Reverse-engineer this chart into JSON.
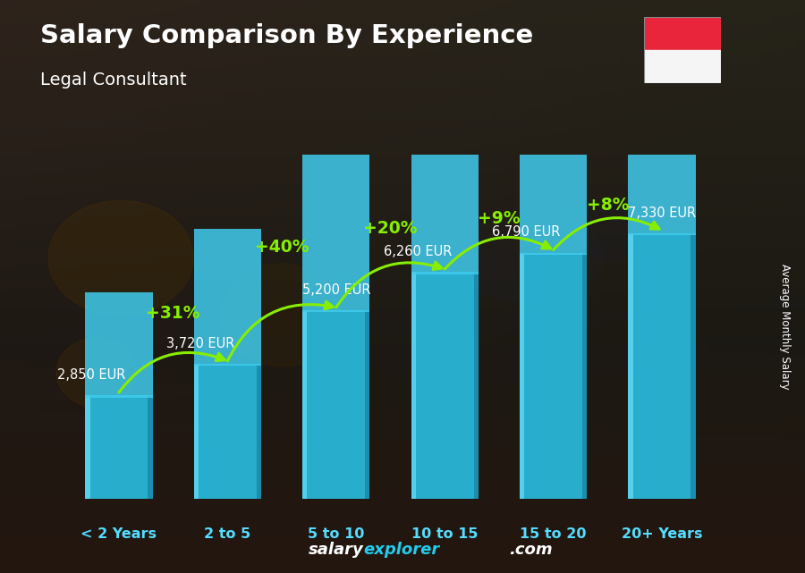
{
  "title": "Salary Comparison By Experience",
  "subtitle": "Legal Consultant",
  "ylabel": "Average Monthly Salary",
  "categories": [
    "< 2 Years",
    "2 to 5",
    "5 to 10",
    "10 to 15",
    "15 to 20",
    "20+ Years"
  ],
  "values": [
    2850,
    3720,
    5200,
    6260,
    6790,
    7330
  ],
  "value_labels": [
    "2,850 EUR",
    "3,720 EUR",
    "5,200 EUR",
    "6,260 EUR",
    "6,790 EUR",
    "7,330 EUR"
  ],
  "pct_labels": [
    "+31%",
    "+40%",
    "+20%",
    "+9%",
    "+8%"
  ],
  "bar_color_main": "#29b6d8",
  "bar_color_light": "#5ad4f0",
  "bar_color_dark": "#1a8aaa",
  "bar_color_top": "#40ccee",
  "bg_color_top": "#1a1a2e",
  "bg_color_bottom": "#2d1f0e",
  "pct_color": "#88ee00",
  "value_label_color": "#ffffff",
  "cat_label_color": "#55ddff",
  "watermark_color1": "#ffffff",
  "watermark_color2": "#22ccee",
  "flag_red": "#e8253a",
  "flag_white": "#f5f5f5",
  "ylim_max": 9500,
  "bar_width": 0.62,
  "arrow_color": "#88ee00"
}
